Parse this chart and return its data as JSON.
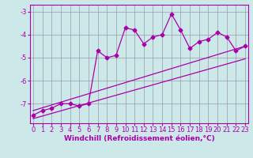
{
  "x_data": [
    0,
    1,
    2,
    3,
    4,
    5,
    6,
    7,
    8,
    9,
    10,
    11,
    12,
    13,
    14,
    15,
    16,
    17,
    18,
    19,
    20,
    21,
    22,
    23
  ],
  "y_data": [
    -7.5,
    -7.3,
    -7.2,
    -7.0,
    -7.0,
    -7.1,
    -7.0,
    -4.7,
    -5.0,
    -4.9,
    -3.7,
    -3.8,
    -4.4,
    -4.1,
    -4.0,
    -3.1,
    -3.8,
    -4.6,
    -4.3,
    -4.2,
    -3.9,
    -4.1,
    -4.7,
    -4.5
  ],
  "reg1_y0": -7.3,
  "reg1_y1": -4.5,
  "reg2_y0": -7.65,
  "reg2_y1": -5.05,
  "bg_color": "#cce8e8",
  "line_color": "#aa00aa",
  "grid_color": "#9999aa",
  "xlabel": "Windchill (Refroidissement éolien,°C)",
  "yticks": [
    -3,
    -4,
    -5,
    -6,
    -7
  ],
  "ylim": [
    -7.85,
    -2.7
  ],
  "xlim": [
    -0.3,
    23.3
  ],
  "xticks": [
    0,
    1,
    2,
    3,
    4,
    5,
    6,
    7,
    8,
    9,
    10,
    11,
    12,
    13,
    14,
    15,
    16,
    17,
    18,
    19,
    20,
    21,
    22,
    23
  ],
  "font_color": "#aa00aa",
  "xlabel_fontsize": 6.5,
  "tick_fontsize": 6,
  "markersize": 2.5,
  "linewidth": 0.9
}
